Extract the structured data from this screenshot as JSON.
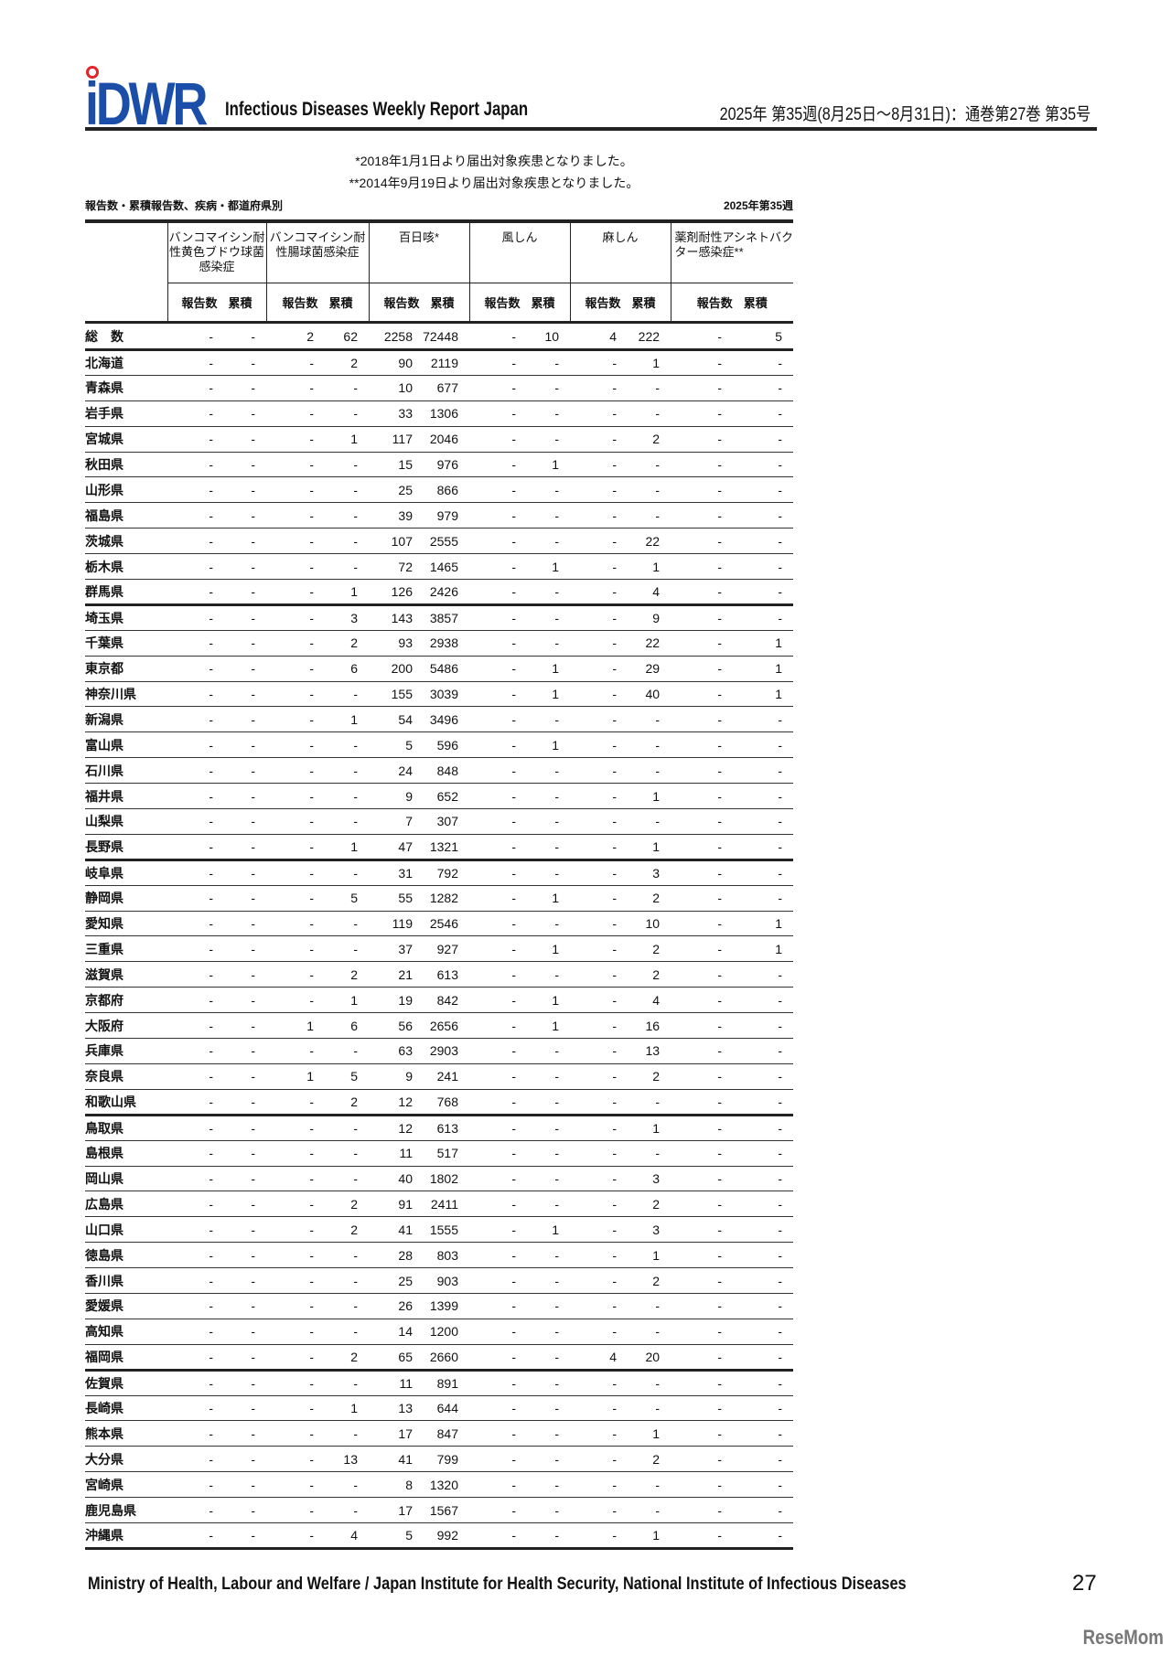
{
  "header": {
    "logo_text": "iDWR",
    "subtitle": "Infectious Diseases Weekly Report Japan",
    "issue": "2025年 第35週(8月25日～8月31日)：通巻第27巻 第35号"
  },
  "notes": [
    "*2018年1月1日より届出対象疾患となりました。",
    "**2014年9月19日より届出対象疾患となりました。"
  ],
  "caption_left": "報告数・累積報告数、疾病・都道府県別",
  "caption_right": "2025年第35週",
  "table": {
    "diseases": [
      "バンコマイシン耐性黄色ブドウ球菌感染症",
      "バンコマイシン耐性腸球菌感染症",
      "百日咳*",
      "風しん",
      "麻しん",
      "薬剤耐性アシネトバクター感染症**"
    ],
    "sub_headers": [
      "報告数",
      "累積"
    ],
    "total": {
      "label": "総　数",
      "values": [
        "-",
        "-",
        "2",
        "62",
        "2258",
        "72448",
        "-",
        "10",
        "4",
        "222",
        "-",
        "5"
      ]
    },
    "rows": [
      [
        "北海道",
        "-",
        "-",
        "-",
        "2",
        "90",
        "2119",
        "-",
        "-",
        "-",
        "1",
        "-",
        "-"
      ],
      [
        "青森県",
        "-",
        "-",
        "-",
        "-",
        "10",
        "677",
        "-",
        "-",
        "-",
        "-",
        "-",
        "-"
      ],
      [
        "岩手県",
        "-",
        "-",
        "-",
        "-",
        "33",
        "1306",
        "-",
        "-",
        "-",
        "-",
        "-",
        "-"
      ],
      [
        "宮城県",
        "-",
        "-",
        "-",
        "1",
        "117",
        "2046",
        "-",
        "-",
        "-",
        "2",
        "-",
        "-"
      ],
      [
        "秋田県",
        "-",
        "-",
        "-",
        "-",
        "15",
        "976",
        "-",
        "1",
        "-",
        "-",
        "-",
        "-"
      ],
      [
        "山形県",
        "-",
        "-",
        "-",
        "-",
        "25",
        "866",
        "-",
        "-",
        "-",
        "-",
        "-",
        "-"
      ],
      [
        "福島県",
        "-",
        "-",
        "-",
        "-",
        "39",
        "979",
        "-",
        "-",
        "-",
        "-",
        "-",
        "-"
      ],
      [
        "茨城県",
        "-",
        "-",
        "-",
        "-",
        "107",
        "2555",
        "-",
        "-",
        "-",
        "22",
        "-",
        "-"
      ],
      [
        "栃木県",
        "-",
        "-",
        "-",
        "-",
        "72",
        "1465",
        "-",
        "1",
        "-",
        "1",
        "-",
        "-"
      ],
      [
        "群馬県",
        "-",
        "-",
        "-",
        "1",
        "126",
        "2426",
        "-",
        "-",
        "-",
        "4",
        "-",
        "-"
      ],
      [
        "埼玉県",
        "-",
        "-",
        "-",
        "3",
        "143",
        "3857",
        "-",
        "-",
        "-",
        "9",
        "-",
        "-"
      ],
      [
        "千葉県",
        "-",
        "-",
        "-",
        "2",
        "93",
        "2938",
        "-",
        "-",
        "-",
        "22",
        "-",
        "1"
      ],
      [
        "東京都",
        "-",
        "-",
        "-",
        "6",
        "200",
        "5486",
        "-",
        "1",
        "-",
        "29",
        "-",
        "1"
      ],
      [
        "神奈川県",
        "-",
        "-",
        "-",
        "-",
        "155",
        "3039",
        "-",
        "1",
        "-",
        "40",
        "-",
        "1"
      ],
      [
        "新潟県",
        "-",
        "-",
        "-",
        "1",
        "54",
        "3496",
        "-",
        "-",
        "-",
        "-",
        "-",
        "-"
      ],
      [
        "富山県",
        "-",
        "-",
        "-",
        "-",
        "5",
        "596",
        "-",
        "1",
        "-",
        "-",
        "-",
        "-"
      ],
      [
        "石川県",
        "-",
        "-",
        "-",
        "-",
        "24",
        "848",
        "-",
        "-",
        "-",
        "-",
        "-",
        "-"
      ],
      [
        "福井県",
        "-",
        "-",
        "-",
        "-",
        "9",
        "652",
        "-",
        "-",
        "-",
        "1",
        "-",
        "-"
      ],
      [
        "山梨県",
        "-",
        "-",
        "-",
        "-",
        "7",
        "307",
        "-",
        "-",
        "-",
        "-",
        "-",
        "-"
      ],
      [
        "長野県",
        "-",
        "-",
        "-",
        "1",
        "47",
        "1321",
        "-",
        "-",
        "-",
        "1",
        "-",
        "-"
      ],
      [
        "岐阜県",
        "-",
        "-",
        "-",
        "-",
        "31",
        "792",
        "-",
        "-",
        "-",
        "3",
        "-",
        "-"
      ],
      [
        "静岡県",
        "-",
        "-",
        "-",
        "5",
        "55",
        "1282",
        "-",
        "1",
        "-",
        "2",
        "-",
        "-"
      ],
      [
        "愛知県",
        "-",
        "-",
        "-",
        "-",
        "119",
        "2546",
        "-",
        "-",
        "-",
        "10",
        "-",
        "1"
      ],
      [
        "三重県",
        "-",
        "-",
        "-",
        "-",
        "37",
        "927",
        "-",
        "1",
        "-",
        "2",
        "-",
        "1"
      ],
      [
        "滋賀県",
        "-",
        "-",
        "-",
        "2",
        "21",
        "613",
        "-",
        "-",
        "-",
        "2",
        "-",
        "-"
      ],
      [
        "京都府",
        "-",
        "-",
        "-",
        "1",
        "19",
        "842",
        "-",
        "1",
        "-",
        "4",
        "-",
        "-"
      ],
      [
        "大阪府",
        "-",
        "-",
        "1",
        "6",
        "56",
        "2656",
        "-",
        "1",
        "-",
        "16",
        "-",
        "-"
      ],
      [
        "兵庫県",
        "-",
        "-",
        "-",
        "-",
        "63",
        "2903",
        "-",
        "-",
        "-",
        "13",
        "-",
        "-"
      ],
      [
        "奈良県",
        "-",
        "-",
        "1",
        "5",
        "9",
        "241",
        "-",
        "-",
        "-",
        "2",
        "-",
        "-"
      ],
      [
        "和歌山県",
        "-",
        "-",
        "-",
        "2",
        "12",
        "768",
        "-",
        "-",
        "-",
        "-",
        "-",
        "-"
      ],
      [
        "鳥取県",
        "-",
        "-",
        "-",
        "-",
        "12",
        "613",
        "-",
        "-",
        "-",
        "1",
        "-",
        "-"
      ],
      [
        "島根県",
        "-",
        "-",
        "-",
        "-",
        "11",
        "517",
        "-",
        "-",
        "-",
        "-",
        "-",
        "-"
      ],
      [
        "岡山県",
        "-",
        "-",
        "-",
        "-",
        "40",
        "1802",
        "-",
        "-",
        "-",
        "3",
        "-",
        "-"
      ],
      [
        "広島県",
        "-",
        "-",
        "-",
        "2",
        "91",
        "2411",
        "-",
        "-",
        "-",
        "2",
        "-",
        "-"
      ],
      [
        "山口県",
        "-",
        "-",
        "-",
        "2",
        "41",
        "1555",
        "-",
        "1",
        "-",
        "3",
        "-",
        "-"
      ],
      [
        "徳島県",
        "-",
        "-",
        "-",
        "-",
        "28",
        "803",
        "-",
        "-",
        "-",
        "1",
        "-",
        "-"
      ],
      [
        "香川県",
        "-",
        "-",
        "-",
        "-",
        "25",
        "903",
        "-",
        "-",
        "-",
        "2",
        "-",
        "-"
      ],
      [
        "愛媛県",
        "-",
        "-",
        "-",
        "-",
        "26",
        "1399",
        "-",
        "-",
        "-",
        "-",
        "-",
        "-"
      ],
      [
        "高知県",
        "-",
        "-",
        "-",
        "-",
        "14",
        "1200",
        "-",
        "-",
        "-",
        "-",
        "-",
        "-"
      ],
      [
        "福岡県",
        "-",
        "-",
        "-",
        "2",
        "65",
        "2660",
        "-",
        "-",
        "4",
        "20",
        "-",
        "-"
      ],
      [
        "佐賀県",
        "-",
        "-",
        "-",
        "-",
        "11",
        "891",
        "-",
        "-",
        "-",
        "-",
        "-",
        "-"
      ],
      [
        "長崎県",
        "-",
        "-",
        "-",
        "1",
        "13",
        "644",
        "-",
        "-",
        "-",
        "-",
        "-",
        "-"
      ],
      [
        "熊本県",
        "-",
        "-",
        "-",
        "-",
        "17",
        "847",
        "-",
        "-",
        "-",
        "1",
        "-",
        "-"
      ],
      [
        "大分県",
        "-",
        "-",
        "-",
        "13",
        "41",
        "799",
        "-",
        "-",
        "-",
        "2",
        "-",
        "-"
      ],
      [
        "宮崎県",
        "-",
        "-",
        "-",
        "-",
        "8",
        "1320",
        "-",
        "-",
        "-",
        "-",
        "-",
        "-"
      ],
      [
        "鹿児島県",
        "-",
        "-",
        "-",
        "-",
        "17",
        "1567",
        "-",
        "-",
        "-",
        "-",
        "-",
        "-"
      ],
      [
        "沖縄県",
        "-",
        "-",
        "-",
        "4",
        "5",
        "992",
        "-",
        "-",
        "-",
        "1",
        "-",
        "-"
      ]
    ]
  },
  "footer": {
    "text": "Ministry of Health, Labour and Welfare / Japan Institute for Health Security, National Institute of Infectious Diseases",
    "page_number": "27"
  },
  "watermark": "ReseMom",
  "colors": {
    "logo_blue": "#1a4ea8",
    "logo_red": "#e0262a"
  }
}
